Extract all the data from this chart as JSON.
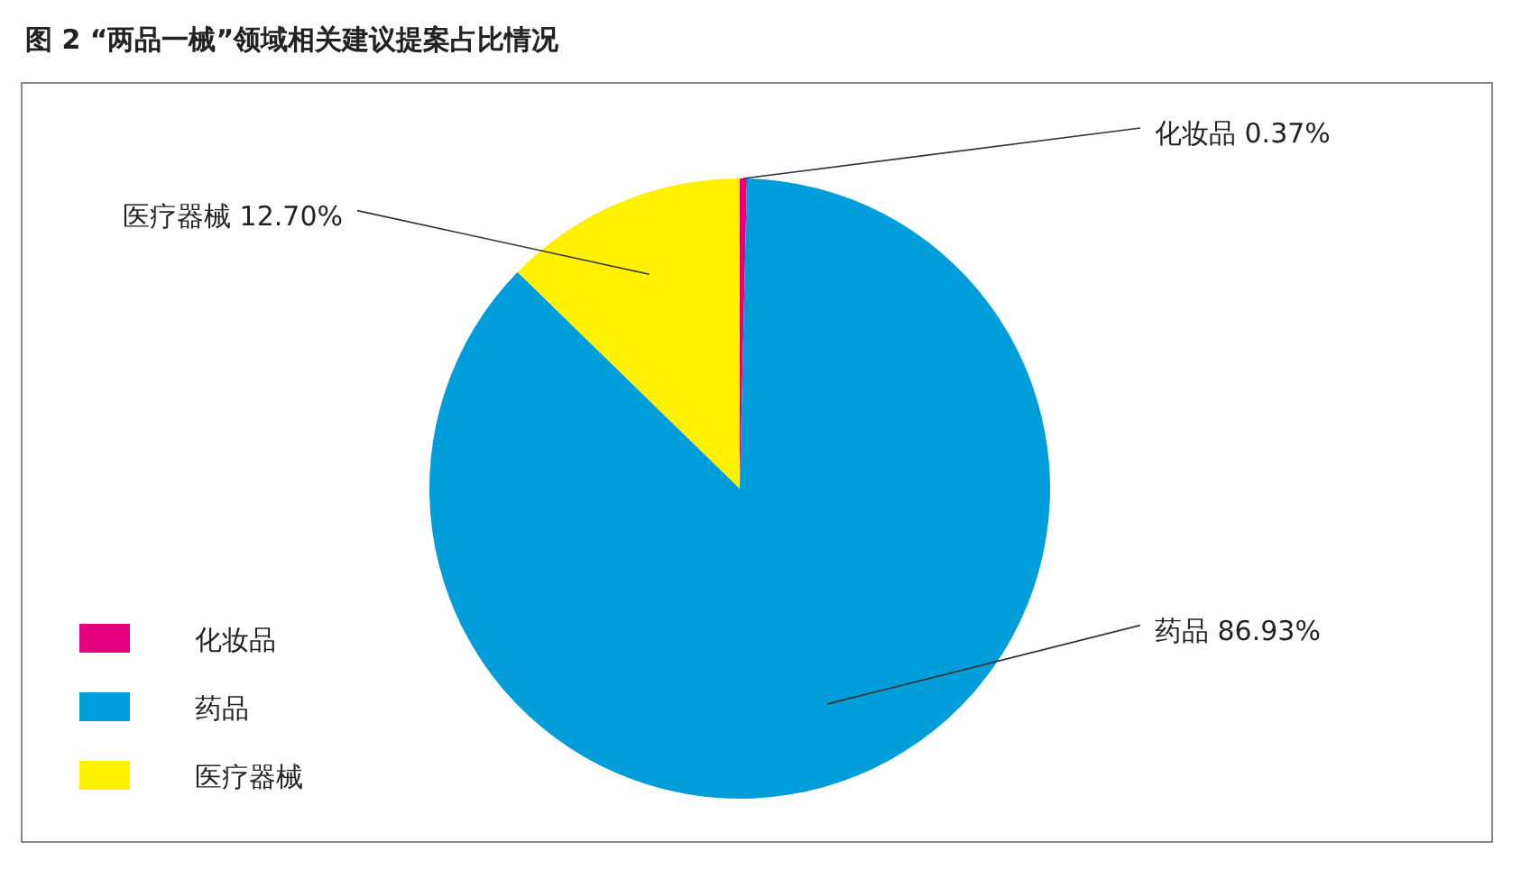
{
  "chart_data": {
    "type": "pie",
    "title": "图 2 “两品一械”领域相关建议提案占比情况",
    "categories": [
      "化妆品",
      "药品",
      "医疗器械"
    ],
    "values": [
      0.37,
      86.93,
      12.7
    ],
    "value_labels": [
      "0.37%",
      "86.93%",
      "12.70%"
    ],
    "colors": [
      "#e5007f",
      "#009ddb",
      "#fff100"
    ],
    "legend": "bottom left"
  }
}
